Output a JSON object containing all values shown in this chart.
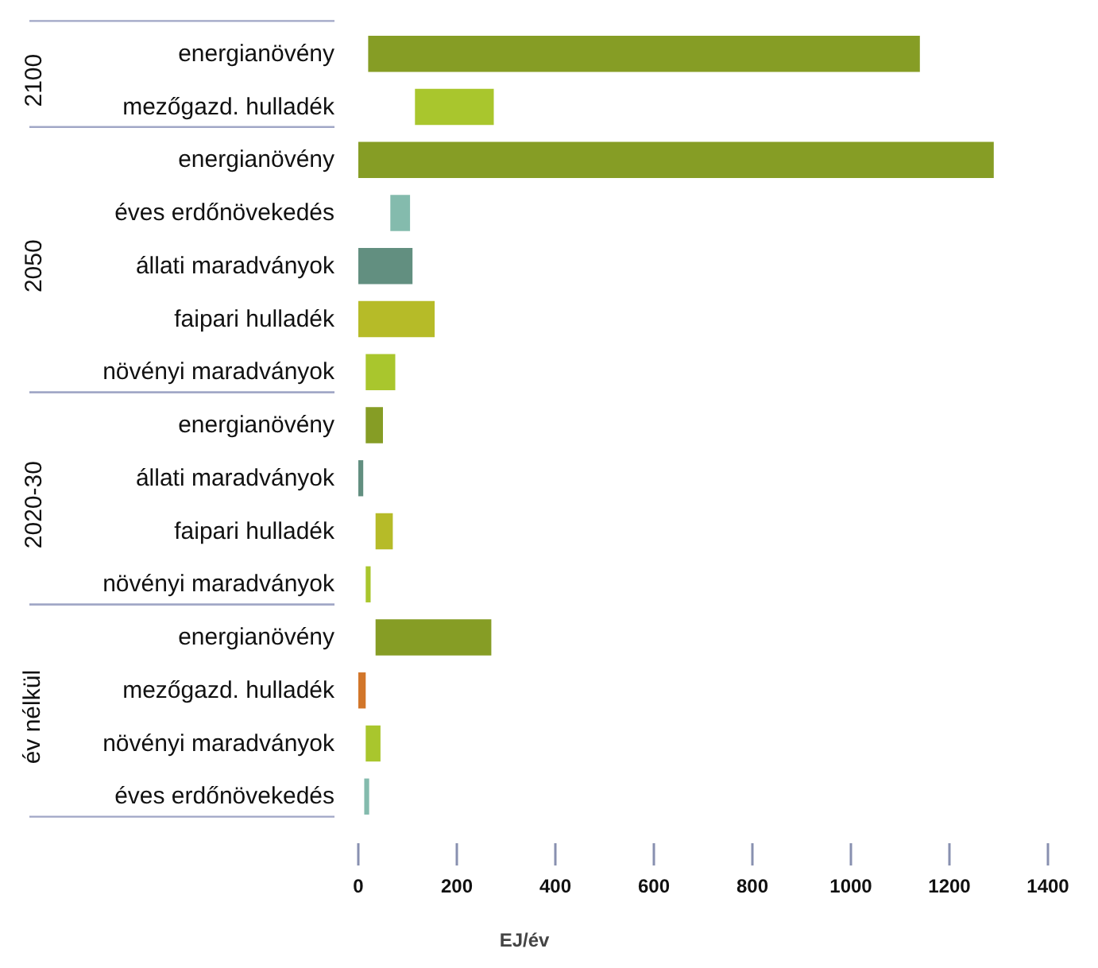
{
  "chart_data": {
    "type": "bar",
    "orientation": "horizontal",
    "xlabel": "EJ/év",
    "categories": [
      "energianövény",
      "mezőgazd. hulladék",
      "energianövény",
      "éves erdőnövekedés",
      "állati maradványok",
      "faipari hulladék",
      "növényi maradványok",
      "energianövény",
      "állati maradványok",
      "faipari hulladék",
      "növényi maradványok",
      "energianövény",
      "mezőgazd. hulladék",
      "növényi maradványok",
      "éves erdőnövekedés"
    ],
    "series": [
      {
        "values": [
          1120,
          160,
          null,
          null,
          null,
          null,
          null,
          null,
          null,
          null,
          null,
          null,
          null,
          null,
          null
        ],
        "base": [
          20,
          115,
          null,
          null,
          null,
          null,
          null,
          null,
          null,
          null,
          null,
          null,
          null,
          null,
          null
        ],
        "colors": [
          "#869d25",
          "#a9c62d",
          null,
          null,
          null,
          null,
          null,
          null,
          null,
          null,
          null,
          null,
          null,
          null,
          null
        ]
      },
      {
        "values": [
          null,
          null,
          1290,
          40,
          110,
          155,
          60,
          null,
          null,
          null,
          null,
          null,
          null,
          null,
          null
        ],
        "base": [
          null,
          null,
          0,
          65,
          0,
          0,
          15,
          null,
          null,
          null,
          null,
          null,
          null,
          null,
          null
        ],
        "colors": [
          null,
          null,
          "#869d25",
          "#84bbad",
          "#628f80",
          "#b6bb28",
          "#a9c62d",
          null,
          null,
          null,
          null,
          null,
          null,
          null,
          null
        ]
      },
      {
        "values": [
          null,
          null,
          null,
          null,
          null,
          null,
          null,
          35,
          10,
          35,
          10,
          null,
          null,
          null,
          null
        ],
        "base": [
          null,
          null,
          null,
          null,
          null,
          null,
          null,
          15,
          0,
          35,
          15,
          null,
          null,
          null,
          null
        ],
        "colors": [
          null,
          null,
          null,
          null,
          null,
          null,
          null,
          "#869d25",
          "#628f80",
          "#b6bb28",
          "#a9c62d",
          null,
          null,
          null,
          null
        ]
      },
      {
        "values": [
          null,
          null,
          null,
          null,
          null,
          null,
          null,
          null,
          null,
          null,
          null,
          235,
          15,
          30,
          10
        ],
        "base": [
          null,
          null,
          null,
          null,
          null,
          null,
          null,
          null,
          null,
          null,
          null,
          35,
          0,
          15,
          12
        ],
        "colors": [
          null,
          null,
          null,
          null,
          null,
          null,
          null,
          null,
          null,
          null,
          null,
          "#869d25",
          "#d2762a",
          "#a9c62d",
          "#84bbad"
        ]
      }
    ],
    "xlim": [
      0,
      1400
    ],
    "xticks": [
      0,
      200,
      400,
      600,
      800,
      1000,
      1200,
      1400
    ],
    "grid": false,
    "annotations": [
      "2100",
      "2050",
      "2020-30",
      "év nélkül"
    ]
  }
}
